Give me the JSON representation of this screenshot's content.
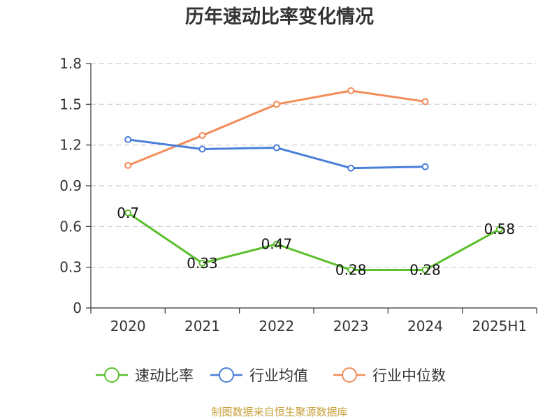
{
  "chart_data": {
    "type": "line",
    "title": "历年速动比率变化情况",
    "categories": [
      "2020",
      "2021",
      "2022",
      "2023",
      "2024",
      "2025H1"
    ],
    "ylim": [
      0,
      1.8
    ],
    "yticks": [
      "0",
      "0.3",
      "0.6",
      "0.9",
      "1.2",
      "1.5",
      "1.8"
    ],
    "ytick_values": [
      0,
      0.3,
      0.6,
      0.9,
      1.2,
      1.5,
      1.8
    ],
    "grid": true,
    "legend_position": "bottom",
    "series": [
      {
        "name": "速动比率",
        "color": "#5bbf2c",
        "values": [
          0.7,
          0.33,
          0.47,
          0.28,
          0.28,
          0.58
        ],
        "labels": [
          "0.7",
          "0.33",
          "0.47",
          "0.28",
          "0.28",
          "0.58"
        ]
      },
      {
        "name": "行业均值",
        "color": "#4a7fd9",
        "values": [
          1.24,
          1.17,
          1.18,
          1.03,
          1.04,
          null
        ]
      },
      {
        "name": "行业中位数",
        "color": "#f28c58",
        "values": [
          1.05,
          1.27,
          1.5,
          1.6,
          1.52,
          null
        ]
      }
    ]
  },
  "footer": {
    "source": "制图数据来自恒生聚源数据库"
  }
}
